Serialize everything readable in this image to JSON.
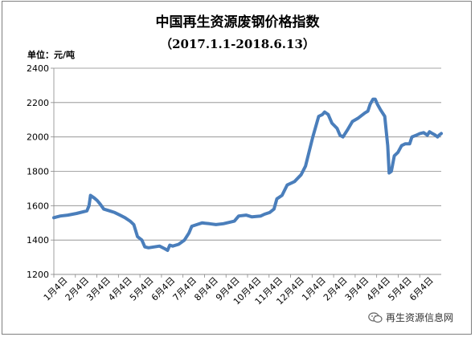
{
  "chart_data": {
    "type": "line",
    "title": "中国再生资源废钢价格指数",
    "subtitle": "（2017.1.1-2018.6.13）",
    "ylabel": "单位：元/吨",
    "xlabel": "",
    "ylim": [
      1200,
      2400
    ],
    "yticks": [
      "2400",
      "2200",
      "2000",
      "1800",
      "1600",
      "1400",
      "1200"
    ],
    "xticks": [
      "1月4日",
      "2月4日",
      "3月4日",
      "4月4日",
      "5月4日",
      "6月4日",
      "7月4日",
      "8月4日",
      "9月4日",
      "10月4日",
      "11月4日",
      "12月4日",
      "1月4日",
      "2月4日",
      "3月4日",
      "4月4日",
      "5月4日",
      "6月4日"
    ],
    "x_start": "2017-01-01",
    "x_end": "2018-06-13",
    "grid": true,
    "legend": "none",
    "line_color": "#4a7ebb",
    "series": [
      {
        "name": "",
        "points": [
          [
            "2017-01-01",
            1530
          ],
          [
            "2017-01-05",
            1535
          ],
          [
            "2017-01-10",
            1540
          ],
          [
            "2017-01-20",
            1545
          ],
          [
            "2017-02-01",
            1555
          ],
          [
            "2017-02-15",
            1570
          ],
          [
            "2017-02-18",
            1600
          ],
          [
            "2017-02-20",
            1660
          ],
          [
            "2017-02-25",
            1645
          ],
          [
            "2017-03-01",
            1630
          ],
          [
            "2017-03-05",
            1610
          ],
          [
            "2017-03-10",
            1580
          ],
          [
            "2017-03-18",
            1570
          ],
          [
            "2017-03-25",
            1560
          ],
          [
            "2017-04-01",
            1545
          ],
          [
            "2017-04-08",
            1530
          ],
          [
            "2017-04-15",
            1510
          ],
          [
            "2017-04-20",
            1490
          ],
          [
            "2017-04-25",
            1420
          ],
          [
            "2017-05-01",
            1400
          ],
          [
            "2017-05-05",
            1360
          ],
          [
            "2017-05-10",
            1355
          ],
          [
            "2017-05-25",
            1365
          ],
          [
            "2017-06-01",
            1350
          ],
          [
            "2017-06-05",
            1340
          ],
          [
            "2017-06-08",
            1370
          ],
          [
            "2017-06-12",
            1365
          ],
          [
            "2017-06-20",
            1375
          ],
          [
            "2017-06-28",
            1400
          ],
          [
            "2017-07-04",
            1440
          ],
          [
            "2017-07-08",
            1480
          ],
          [
            "2017-07-15",
            1490
          ],
          [
            "2017-07-22",
            1500
          ],
          [
            "2017-08-01",
            1495
          ],
          [
            "2017-08-10",
            1490
          ],
          [
            "2017-08-20",
            1495
          ],
          [
            "2017-08-30",
            1505
          ],
          [
            "2017-09-04",
            1510
          ],
          [
            "2017-09-10",
            1540
          ],
          [
            "2017-09-20",
            1545
          ],
          [
            "2017-09-28",
            1535
          ],
          [
            "2017-10-10",
            1540
          ],
          [
            "2017-10-15",
            1550
          ],
          [
            "2017-10-22",
            1560
          ],
          [
            "2017-10-28",
            1580
          ],
          [
            "2017-11-01",
            1640
          ],
          [
            "2017-11-08",
            1660
          ],
          [
            "2017-11-15",
            1720
          ],
          [
            "2017-11-25",
            1740
          ],
          [
            "2017-12-04",
            1780
          ],
          [
            "2017-12-10",
            1830
          ],
          [
            "2017-12-20",
            2000
          ],
          [
            "2017-12-28",
            2120
          ],
          [
            "2018-01-02",
            2130
          ],
          [
            "2018-01-05",
            2145
          ],
          [
            "2018-01-10",
            2130
          ],
          [
            "2018-01-15",
            2080
          ],
          [
            "2018-01-22",
            2050
          ],
          [
            "2018-01-26",
            2010
          ],
          [
            "2018-01-30",
            2000
          ],
          [
            "2018-02-05",
            2040
          ],
          [
            "2018-02-12",
            2090
          ],
          [
            "2018-02-20",
            2110
          ],
          [
            "2018-03-01",
            2140
          ],
          [
            "2018-03-05",
            2150
          ],
          [
            "2018-03-08",
            2190
          ],
          [
            "2018-03-12",
            2220
          ],
          [
            "2018-03-15",
            2220
          ],
          [
            "2018-03-18",
            2190
          ],
          [
            "2018-03-22",
            2160
          ],
          [
            "2018-03-28",
            2120
          ],
          [
            "2018-04-01",
            1950
          ],
          [
            "2018-04-03",
            1790
          ],
          [
            "2018-04-06",
            1800
          ],
          [
            "2018-04-10",
            1890
          ],
          [
            "2018-04-15",
            1910
          ],
          [
            "2018-04-20",
            1950
          ],
          [
            "2018-04-25",
            1960
          ],
          [
            "2018-05-01",
            1960
          ],
          [
            "2018-05-04",
            2000
          ],
          [
            "2018-05-10",
            2010
          ],
          [
            "2018-05-15",
            2020
          ],
          [
            "2018-05-20",
            2025
          ],
          [
            "2018-05-25",
            2010
          ],
          [
            "2018-05-28",
            2030
          ],
          [
            "2018-06-01",
            2020
          ],
          [
            "2018-06-05",
            2010
          ],
          [
            "2018-06-08",
            2000
          ],
          [
            "2018-06-10",
            2010
          ],
          [
            "2018-06-13",
            2020
          ]
        ]
      }
    ]
  },
  "watermark": {
    "text": "再生资源信息网",
    "icon": "wechat-icon"
  }
}
